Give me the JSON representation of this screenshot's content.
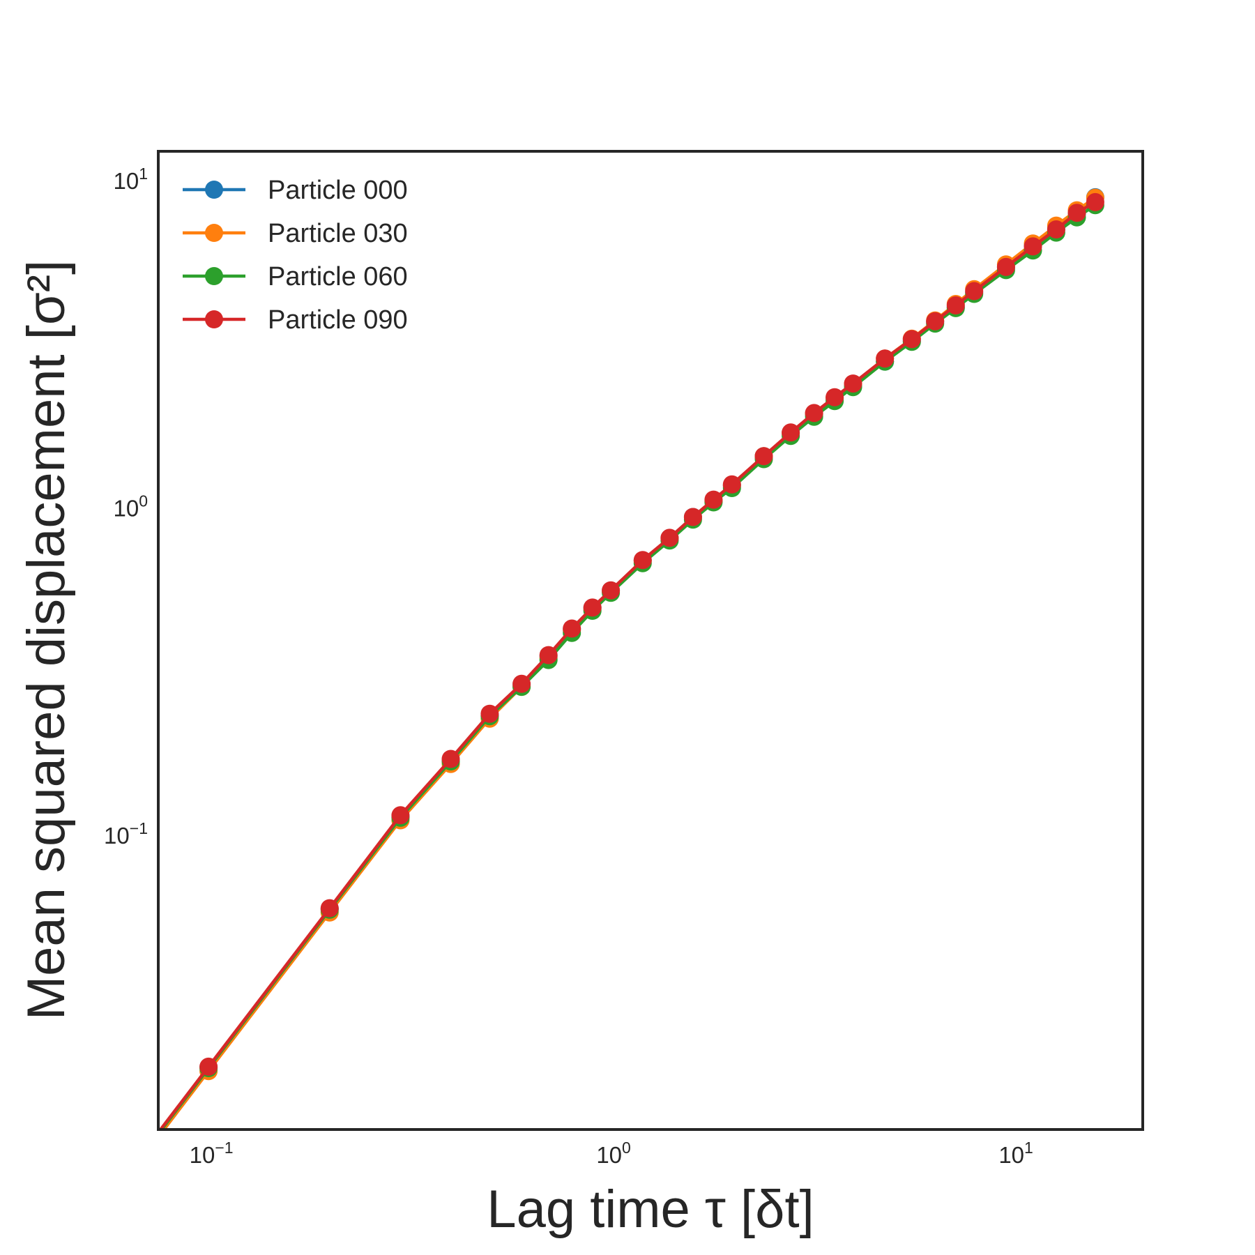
{
  "chart_data": {
    "type": "line",
    "xlabel": "Lag time τ [δt]",
    "ylabel": "Mean squared displacement [σ²]",
    "x_scale": "log",
    "y_scale": "log",
    "xlim": [
      0.075,
      21
    ],
    "ylim": [
      0.0126,
      12.3
    ],
    "x_ticks": [
      {
        "base": "10",
        "exp": "−1",
        "value": 0.1
      },
      {
        "base": "10",
        "exp": "0",
        "value": 1
      },
      {
        "base": "10",
        "exp": "1",
        "value": 10
      }
    ],
    "y_ticks": [
      {
        "base": "10",
        "exp": "−1",
        "value": 0.1
      },
      {
        "base": "10",
        "exp": "0",
        "value": 1
      },
      {
        "base": "10",
        "exp": "1",
        "value": 10
      }
    ],
    "grid": false,
    "legend_position": "top-left",
    "marker": "circle",
    "x": [
      0.1,
      0.2,
      0.3,
      0.4,
      0.5,
      0.6,
      0.7,
      0.8,
      0.9,
      1.0,
      1.2,
      1.4,
      1.6,
      1.8,
      2.0,
      2.4,
      2.8,
      3.2,
      3.6,
      4.0,
      4.8,
      5.6,
      6.4,
      7.2,
      8.0,
      9.6,
      11.2,
      12.8,
      14.4,
      16.0
    ],
    "series": [
      {
        "name": "Particle 000",
        "color": "#1f77b4",
        "values": [
          0.0195,
          0.0596,
          0.114,
          0.169,
          0.232,
          0.288,
          0.352,
          0.426,
          0.495,
          0.559,
          0.691,
          0.809,
          0.938,
          1.05,
          1.17,
          1.44,
          1.69,
          1.93,
          2.16,
          2.37,
          2.8,
          3.24,
          3.7,
          4.11,
          4.56,
          5.43,
          6.32,
          7.1,
          7.93,
          8.9
        ]
      },
      {
        "name": "Particle 030",
        "color": "#ff7f0e",
        "values": [
          0.019,
          0.058,
          0.111,
          0.165,
          0.227,
          0.284,
          0.348,
          0.422,
          0.491,
          0.556,
          0.688,
          0.807,
          0.936,
          1.05,
          1.17,
          1.44,
          1.69,
          1.94,
          2.17,
          2.39,
          2.86,
          3.29,
          3.74,
          4.2,
          4.66,
          5.55,
          6.43,
          7.29,
          8.12,
          8.87
        ]
      },
      {
        "name": "Particle 060",
        "color": "#2ca02c",
        "values": [
          0.0194,
          0.0592,
          0.113,
          0.168,
          0.231,
          0.284,
          0.343,
          0.415,
          0.485,
          0.55,
          0.678,
          0.795,
          0.921,
          1.04,
          1.15,
          1.41,
          1.66,
          1.9,
          2.12,
          2.34,
          2.8,
          3.22,
          3.66,
          4.08,
          4.51,
          5.33,
          6.12,
          6.94,
          7.73,
          8.42
        ]
      },
      {
        "name": "Particle 090",
        "color": "#d62728",
        "values": [
          0.0196,
          0.0598,
          0.115,
          0.171,
          0.235,
          0.29,
          0.355,
          0.428,
          0.496,
          0.56,
          0.693,
          0.81,
          0.938,
          1.06,
          1.18,
          1.44,
          1.7,
          1.95,
          2.18,
          2.4,
          2.86,
          3.28,
          3.72,
          4.16,
          4.6,
          5.45,
          6.3,
          7.1,
          7.98,
          8.6
        ]
      }
    ]
  }
}
